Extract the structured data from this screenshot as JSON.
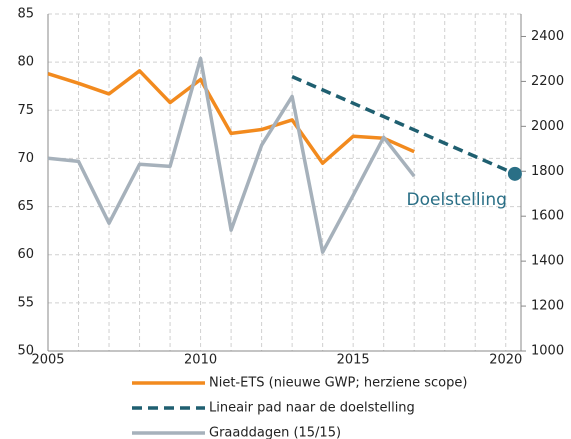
{
  "chart_data": {
    "type": "line",
    "xlim": [
      2005,
      2020.5
    ],
    "xticks": [
      2005,
      2010,
      2015,
      2020
    ],
    "xgrid": [
      2006,
      2007,
      2008,
      2009,
      2011,
      2012,
      2013,
      2014,
      2016,
      2017,
      2018,
      2019
    ],
    "ylim": [
      50,
      85
    ],
    "yticks": [
      50,
      55,
      60,
      65,
      70,
      75,
      80,
      85
    ],
    "y2lim": [
      1000,
      2500
    ],
    "y2ticks": [
      1000,
      1200,
      1400,
      1600,
      1800,
      2000,
      2200,
      2400
    ],
    "grid": true,
    "series": [
      {
        "name": "Niet-ETS (nieuwe GWP; herziene scope)",
        "color": "#f28a1e",
        "dash": false,
        "x": [
          2005,
          2006,
          2007,
          2008,
          2009,
          2010,
          2011,
          2012,
          2013,
          2014,
          2015,
          2016,
          2017
        ],
        "values": [
          78.8,
          77.8,
          76.7,
          79.1,
          75.8,
          78.2,
          72.6,
          73.0,
          74.0,
          69.5,
          72.3,
          72.1,
          70.7
        ]
      },
      {
        "name": "Lineair pad naar de doelstelling",
        "color": "#1f5f70",
        "dash": true,
        "x": [
          2013,
          2020.3
        ],
        "values": [
          78.5,
          68.4
        ]
      },
      {
        "name": "Graaddagen (15/15)",
        "color": "#a6b1bb",
        "dash": false,
        "axis": "y2",
        "x": [
          2005,
          2006,
          2007,
          2008,
          2009,
          2010,
          2011,
          2012,
          2013,
          2014,
          2015,
          2016,
          2017
        ],
        "values": [
          1858,
          1844,
          1569,
          1831,
          1822,
          2302,
          1538,
          1916,
          2133,
          1440,
          1693,
          1951,
          1778
        ]
      }
    ],
    "target": {
      "label": "Doelstelling",
      "x": 2020.3,
      "value": 68.4,
      "color": "#2a6f86"
    }
  }
}
